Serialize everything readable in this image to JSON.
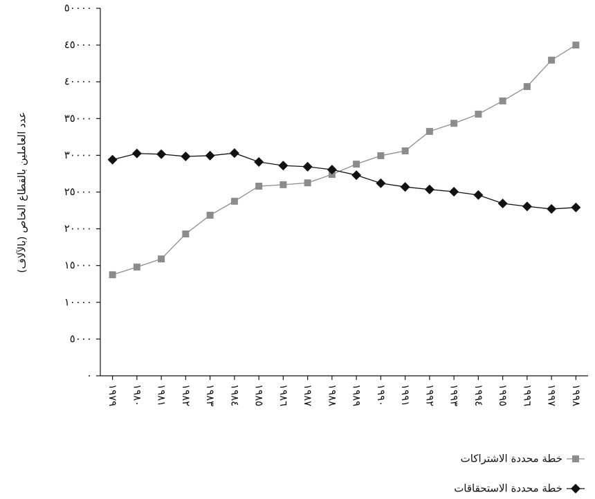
{
  "chart_data": {
    "type": "line",
    "ylabel": "عدد العاملين بالقطاع الخاص (بالآلاف)",
    "categories": [
      "١٩٧٩",
      "١٩٨٠",
      "١٩٨١",
      "١٩٨٢",
      "١٩٨٣",
      "١٩٨٤",
      "١٩٨٥",
      "١٩٨٦",
      "١٩٨٧",
      "١٩٨٨",
      "١٩٨٩",
      "١٩٩٠",
      "١٩٩١",
      "١٩٩٢",
      "١٩٩٣",
      "١٩٩٤",
      "١٩٩٥",
      "١٩٩٦",
      "١٩٩٧",
      "١٩٩٨"
    ],
    "series": [
      {
        "name": "خطة محددة الاشتراكات",
        "color": "#8c8c8c",
        "marker": "square",
        "values": [
          13750,
          14800,
          15900,
          19300,
          21850,
          23750,
          25800,
          26000,
          26250,
          27400,
          28800,
          29950,
          30600,
          33250,
          34350,
          35600,
          37400,
          39350,
          42950,
          45000
        ]
      },
      {
        "name": "خطة محددة الاستحقاقات",
        "color": "#111111",
        "marker": "diamond",
        "values": [
          29400,
          30250,
          30150,
          29850,
          29950,
          30300,
          29100,
          28600,
          28450,
          28050,
          27300,
          26200,
          25700,
          25350,
          25050,
          24600,
          23450,
          23050,
          22700,
          22900
        ]
      }
    ],
    "ylim": [
      0,
      50000
    ],
    "yticks": [
      {
        "value": 0,
        "label": "٠"
      },
      {
        "value": 5000,
        "label": "٥٠٠٠"
      },
      {
        "value": 10000,
        "label": "١٠٠٠٠"
      },
      {
        "value": 15000,
        "label": "١٥٠٠٠"
      },
      {
        "value": 20000,
        "label": "٢٠٠٠٠"
      },
      {
        "value": 25000,
        "label": "٢٥٠٠٠"
      },
      {
        "value": 30000,
        "label": "٣٠٠٠٠"
      },
      {
        "value": 35000,
        "label": "٣٥٠٠٠"
      },
      {
        "value": 40000,
        "label": "٤٠٠٠٠"
      },
      {
        "value": 45000,
        "label": "٤٥٠٠٠"
      },
      {
        "value": 50000,
        "label": "٥٠٠٠٠"
      }
    ],
    "grid": false,
    "legend": "bottom-right"
  }
}
